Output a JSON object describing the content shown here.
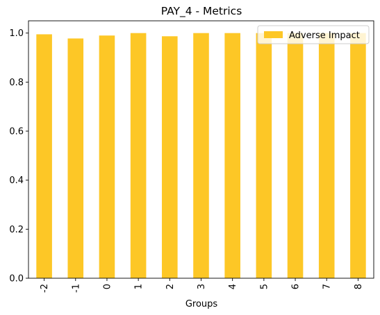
{
  "chart_data": {
    "type": "bar",
    "title": "PAY_4 - Metrics",
    "xlabel": "Groups",
    "ylabel": "",
    "categories": [
      "-2",
      "-1",
      "0",
      "1",
      "2",
      "3",
      "4",
      "5",
      "6",
      "7",
      "8"
    ],
    "series": [
      {
        "name": "Adverse Impact",
        "color": "#fdc726",
        "values": [
          0.995,
          0.978,
          0.99,
          1.0,
          0.987,
          1.0,
          1.0,
          1.0,
          1.0,
          1.0,
          1.0
        ]
      }
    ],
    "ylim": [
      0,
      1.05
    ],
    "yticks": [
      "0.0",
      "0.2",
      "0.4",
      "0.6",
      "0.8",
      "1.0"
    ],
    "grid": false,
    "legend_position": "upper right"
  }
}
